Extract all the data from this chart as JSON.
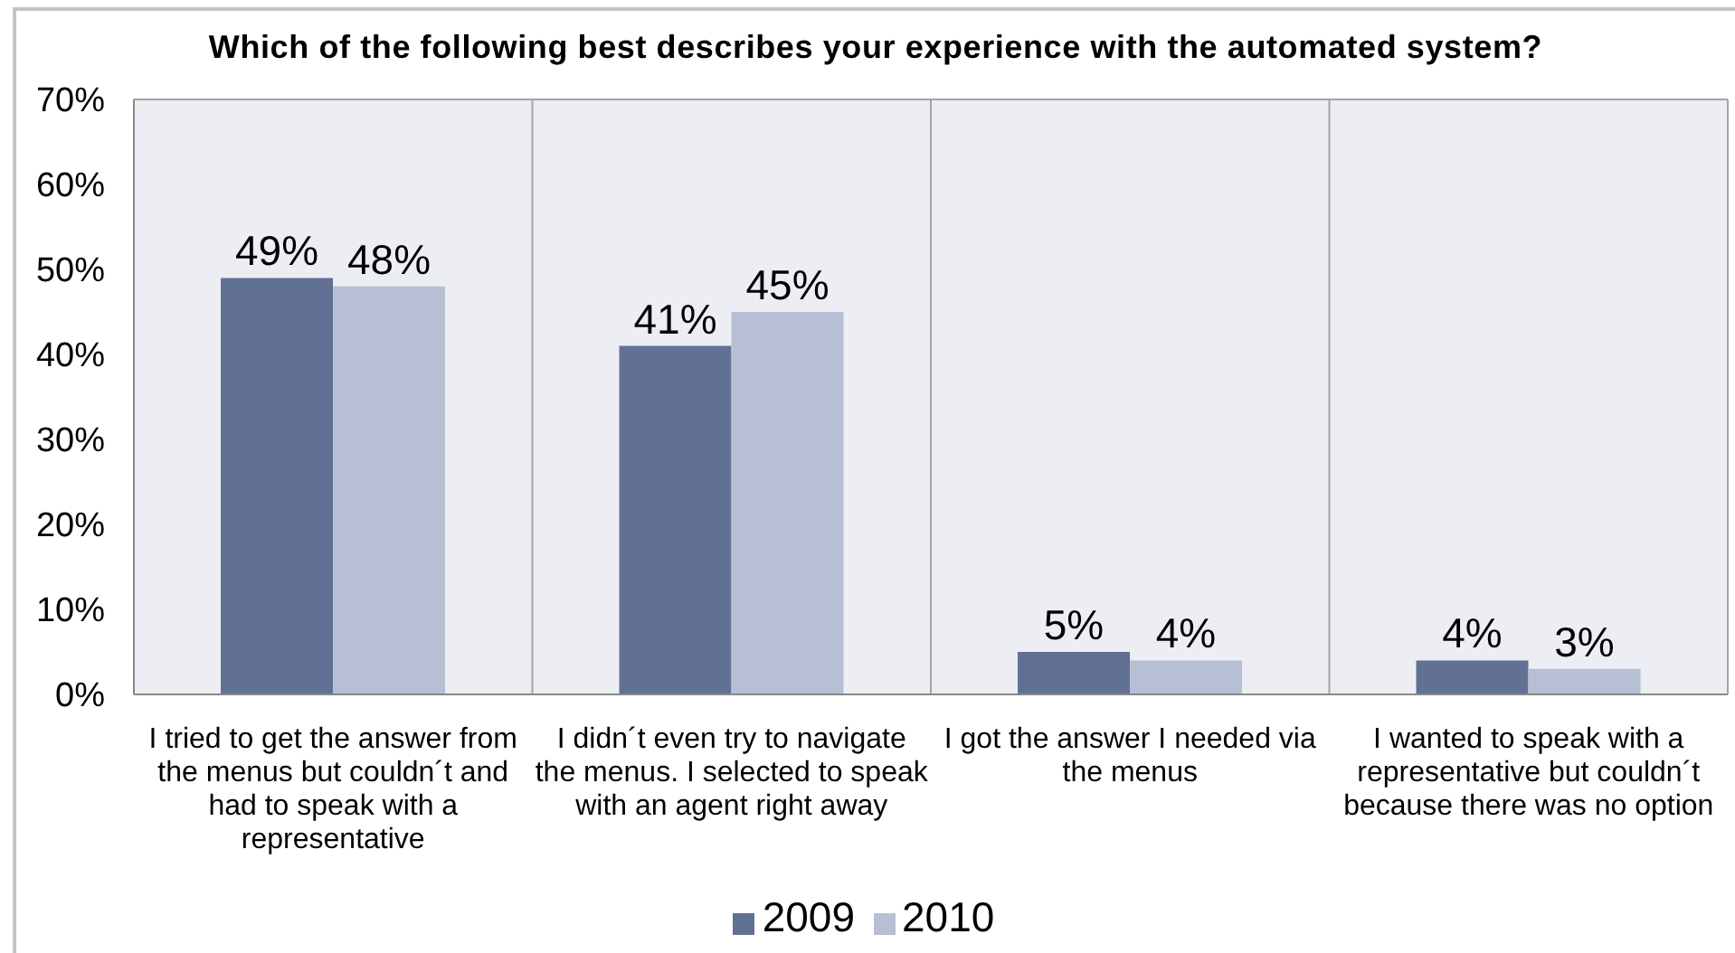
{
  "chart_data": {
    "type": "bar",
    "title": "Which of the following best describes your experience with the automated system?",
    "categories": [
      "I tried to get the answer from the menus but couldn´t and had to speak with a representative",
      "I didn´t even try to navigate the menus. I selected to speak with an agent right away",
      "I got the answer I needed via the menus",
      "I wanted to speak with a representative but couldn´t because there was no option"
    ],
    "series": [
      {
        "name": "2009",
        "color": "#617194",
        "values": [
          49,
          41,
          5,
          4
        ],
        "value_labels": [
          "49%",
          "41%",
          "5%",
          "4%"
        ]
      },
      {
        "name": "2010",
        "color": "#b7bfd5",
        "values": [
          48,
          45,
          4,
          3
        ],
        "value_labels": [
          "48%",
          "45%",
          "4%",
          "3%"
        ]
      }
    ],
    "ylim": [
      0,
      70
    ],
    "yticks": [
      {
        "value": 0,
        "label": "0%"
      },
      {
        "value": 10,
        "label": "10%"
      },
      {
        "value": 20,
        "label": "20%"
      },
      {
        "value": 30,
        "label": "30%"
      },
      {
        "value": 40,
        "label": "40%"
      },
      {
        "value": 50,
        "label": "50%"
      },
      {
        "value": 60,
        "label": "60%"
      },
      {
        "value": 70,
        "label": "70%"
      }
    ],
    "grid": true,
    "legend": "bottom"
  }
}
